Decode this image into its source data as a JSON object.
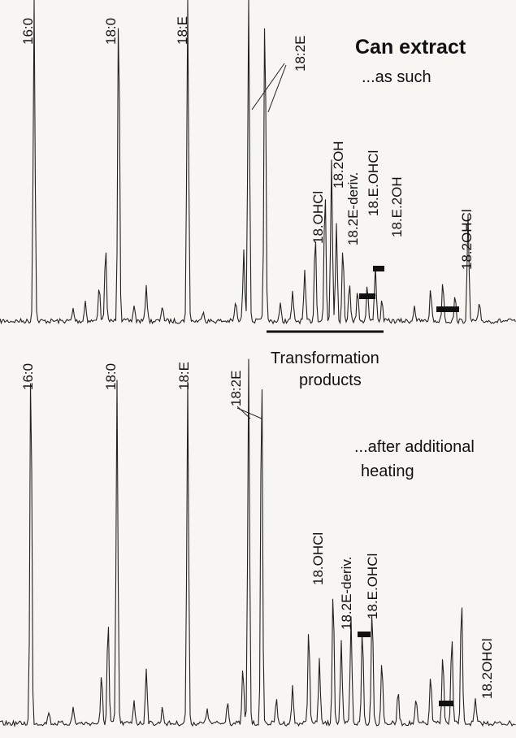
{
  "top_panel": {
    "heading": "Can extract",
    "caption": "...as such",
    "peak_labels": [
      "16:0",
      "18:0",
      "18:E",
      "18:2E",
      "18.OHCl",
      "18.2OH",
      "18.2E-deriv.",
      "18.E.OHCl",
      "18.E.2OH",
      "18.2OHCl"
    ],
    "transformation": [
      "Transformation",
      "products"
    ]
  },
  "bottom_panel": {
    "caption": [
      "...after additional",
      "heating"
    ],
    "peak_labels": [
      "16:0",
      "18:0",
      "18:E",
      "18:2E",
      "18.OHCl",
      "18.2E-deriv.",
      "18.E.OHCl",
      "18.2OHCl"
    ]
  }
}
